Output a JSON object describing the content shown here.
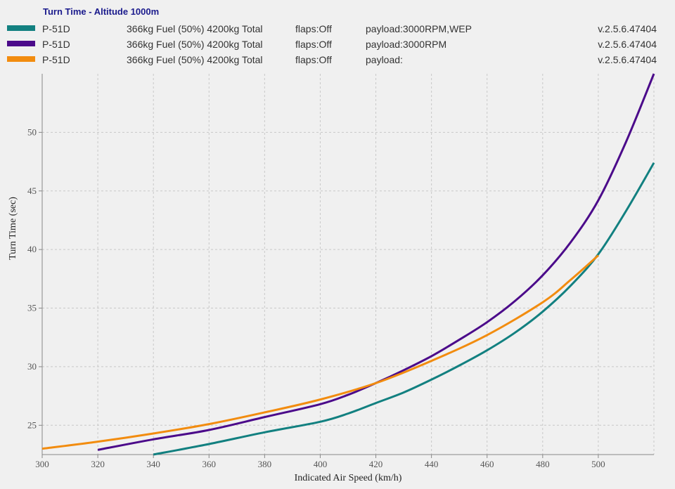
{
  "legend": {
    "title": "Turn Time - Altitude 1000m",
    "entries": [
      {
        "name": "P-51D",
        "fuel": "366kg Fuel (50%) 4200kg Total",
        "flaps": "flaps:Off",
        "payload": "payload:3000RPM,WEP",
        "version": "v.2.5.6.47404",
        "color": "#128080"
      },
      {
        "name": "P-51D",
        "fuel": "366kg Fuel (50%) 4200kg Total",
        "flaps": "flaps:Off",
        "payload": "payload:3000RPM",
        "version": "v.2.5.6.47404",
        "color": "#4b0a8a"
      },
      {
        "name": "P-51D",
        "fuel": "366kg Fuel (50%) 4200kg Total",
        "flaps": "flaps:Off",
        "payload": "payload:",
        "version": "v.2.5.6.47404",
        "color": "#f28c0f"
      }
    ]
  },
  "chart_data": {
    "type": "line",
    "title": "Turn Time - Altitude 1000m",
    "xlabel": "Indicated Air Speed (km/h)",
    "ylabel": "Turn Time (sec)",
    "xlim": [
      300,
      520
    ],
    "ylim": [
      22.5,
      55
    ],
    "x_ticks": [
      300,
      320,
      340,
      360,
      380,
      400,
      420,
      440,
      460,
      480,
      500
    ],
    "y_ticks": [
      25,
      30,
      35,
      40,
      45,
      50
    ],
    "grid": true,
    "series": [
      {
        "name": "payload:3000RPM,WEP",
        "color": "#128080",
        "points": [
          [
            340,
            22.5
          ],
          [
            360,
            23.4
          ],
          [
            380,
            24.4
          ],
          [
            400,
            25.3
          ],
          [
            410,
            26.0
          ],
          [
            420,
            26.9
          ],
          [
            430,
            27.8
          ],
          [
            440,
            28.9
          ],
          [
            450,
            30.1
          ],
          [
            460,
            31.4
          ],
          [
            470,
            32.9
          ],
          [
            480,
            34.7
          ],
          [
            490,
            36.9
          ],
          [
            500,
            39.6
          ],
          [
            510,
            43.3
          ],
          [
            520,
            47.4
          ]
        ]
      },
      {
        "name": "payload:3000RPM",
        "color": "#4b0a8a",
        "points": [
          [
            320,
            22.9
          ],
          [
            340,
            23.8
          ],
          [
            360,
            24.6
          ],
          [
            380,
            25.7
          ],
          [
            400,
            26.8
          ],
          [
            410,
            27.6
          ],
          [
            420,
            28.6
          ],
          [
            430,
            29.7
          ],
          [
            440,
            30.9
          ],
          [
            450,
            32.3
          ],
          [
            460,
            33.8
          ],
          [
            470,
            35.6
          ],
          [
            480,
            37.8
          ],
          [
            490,
            40.6
          ],
          [
            500,
            44.2
          ],
          [
            510,
            49.2
          ],
          [
            520,
            55.0
          ]
        ]
      },
      {
        "name": "payload:",
        "color": "#f28c0f",
        "points": [
          [
            300,
            23.0
          ],
          [
            320,
            23.6
          ],
          [
            340,
            24.3
          ],
          [
            360,
            25.1
          ],
          [
            380,
            26.1
          ],
          [
            400,
            27.2
          ],
          [
            420,
            28.6
          ],
          [
            440,
            30.5
          ],
          [
            460,
            32.7
          ],
          [
            480,
            35.5
          ],
          [
            490,
            37.4
          ],
          [
            500,
            39.5
          ]
        ]
      }
    ]
  }
}
